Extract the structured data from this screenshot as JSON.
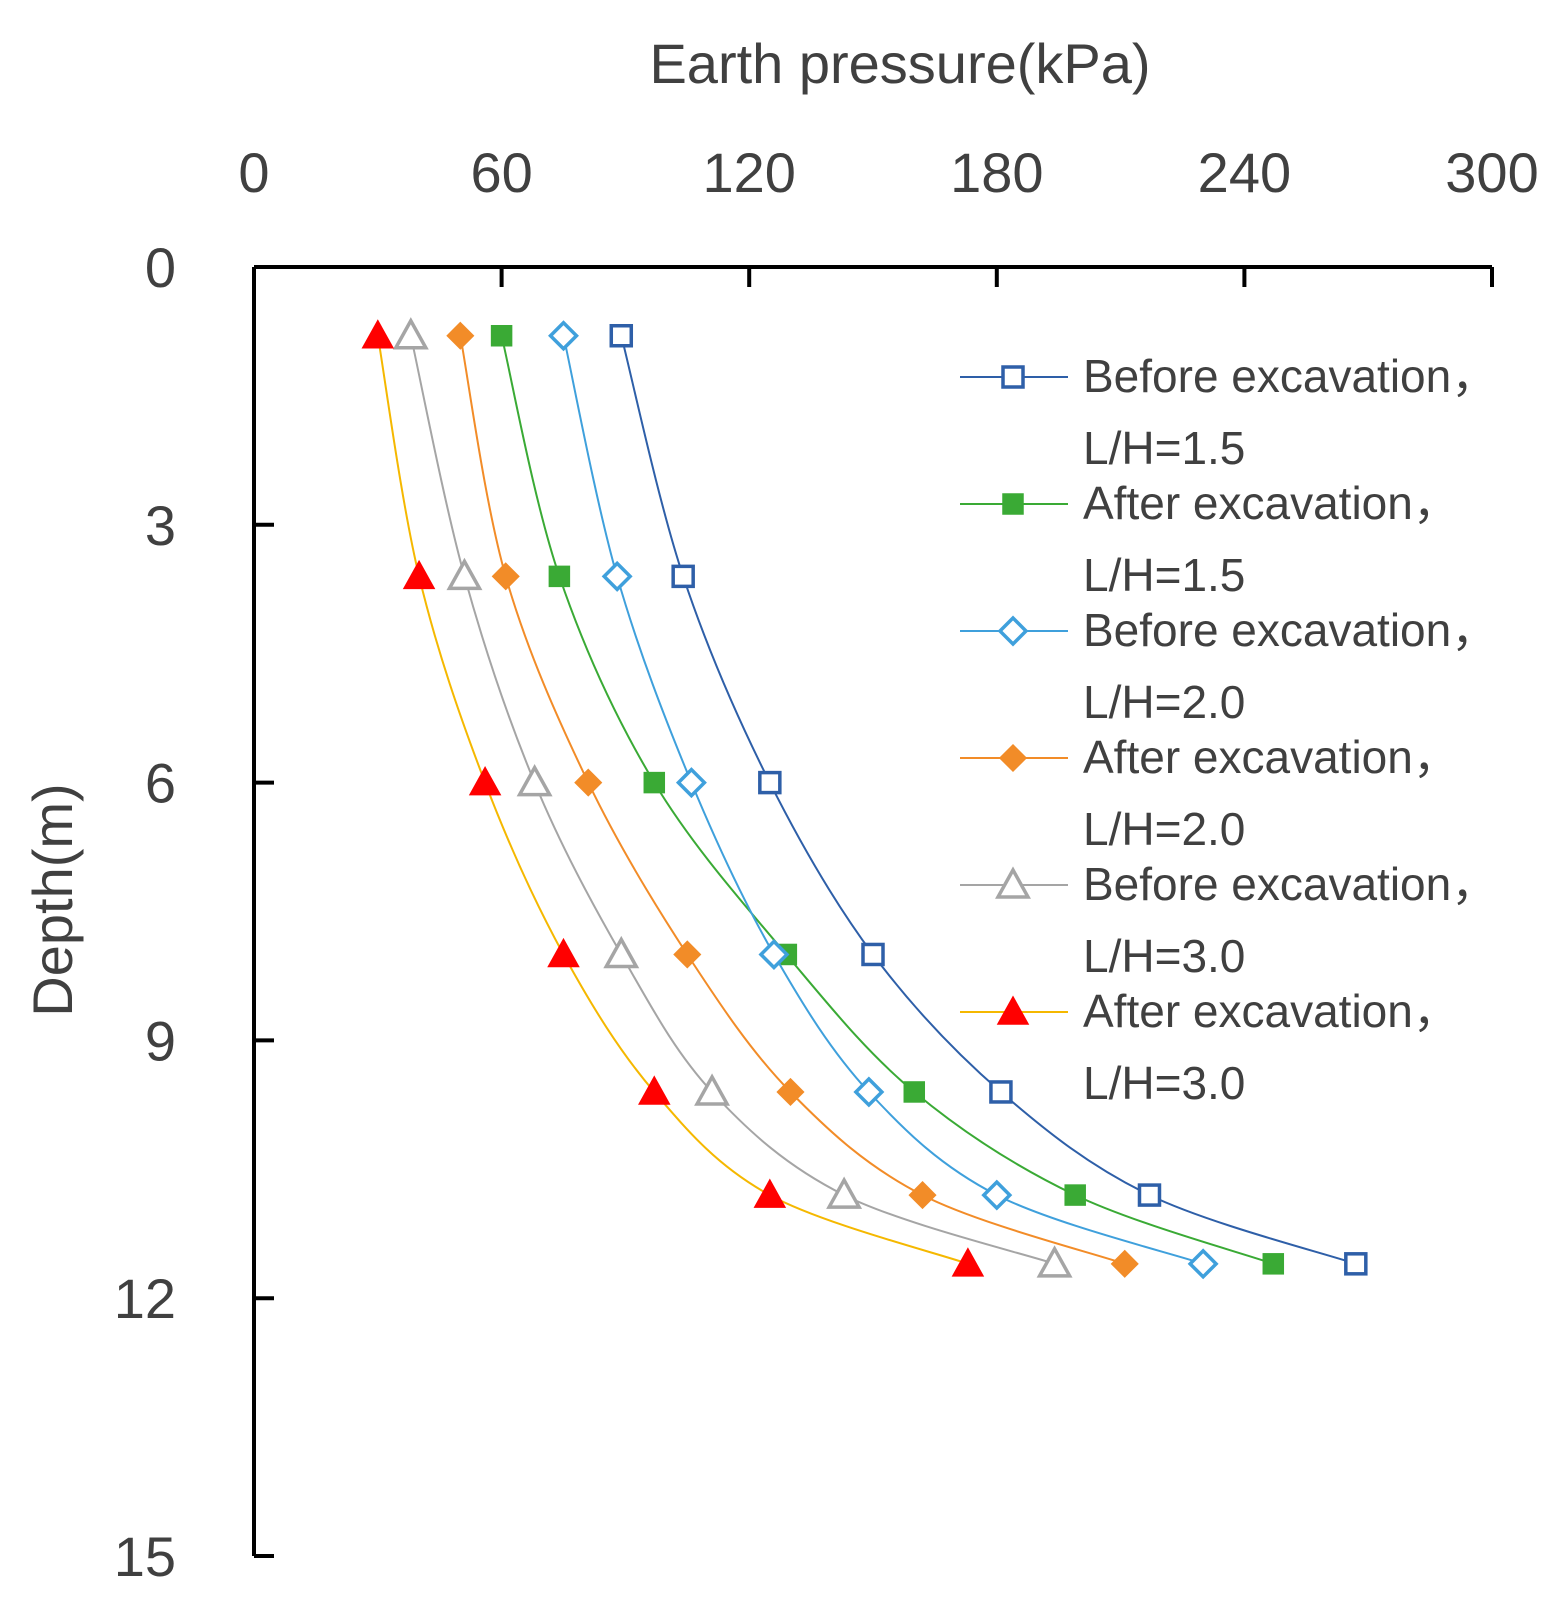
{
  "chart_data": {
    "type": "line",
    "title": "",
    "xlabel": "Earth pressure(kPa)",
    "ylabel": "Depth(m)",
    "xlim": [
      0,
      300
    ],
    "ylim": [
      15,
      0
    ],
    "x_axis_position": "top",
    "x_ticks": [
      0,
      60,
      120,
      180,
      240,
      300
    ],
    "y_ticks": [
      0,
      3,
      6,
      9,
      12,
      15
    ],
    "grid": false,
    "legend_position": "top-right",
    "depths": [
      0.8,
      3.6,
      6.0,
      8.0,
      9.6,
      10.8,
      11.6
    ],
    "series": [
      {
        "name": "Before excavation，",
        "name_line2": "L/H=1.5",
        "color": "#2E5FA8",
        "marker": "square-open",
        "values": [
          89,
          104,
          125,
          150,
          181,
          217,
          267
        ]
      },
      {
        "name": "After excavation，",
        "name_line2": "L/H=1.5",
        "color": "#3AAA35",
        "marker": "square-filled",
        "values": [
          60,
          74,
          97,
          129,
          160,
          199,
          247
        ]
      },
      {
        "name": "Before excavation，",
        "name_line2": "L/H=2.0",
        "color": "#3FA0DC",
        "marker": "diamond-open",
        "values": [
          75,
          88,
          106,
          126,
          149,
          180,
          230
        ]
      },
      {
        "name": "After excavation，",
        "name_line2": "L/H=2.0",
        "color": "#F28C28",
        "marker": "diamond-filled",
        "values": [
          50,
          61,
          81,
          105,
          130,
          162,
          211
        ]
      },
      {
        "name": "Before excavation，",
        "name_line2": "L/H=3.0",
        "color": "#A5A5A5",
        "marker": "triangle-open",
        "values": [
          38,
          51,
          68,
          89,
          111,
          143,
          194
        ]
      },
      {
        "name": "After excavation，",
        "name_line2": "L/H=3.0",
        "color": "#FF0000",
        "line_color": "#F5B800",
        "marker": "triangle-filled",
        "values": [
          30,
          40,
          56,
          75,
          97,
          125,
          173
        ]
      }
    ]
  }
}
